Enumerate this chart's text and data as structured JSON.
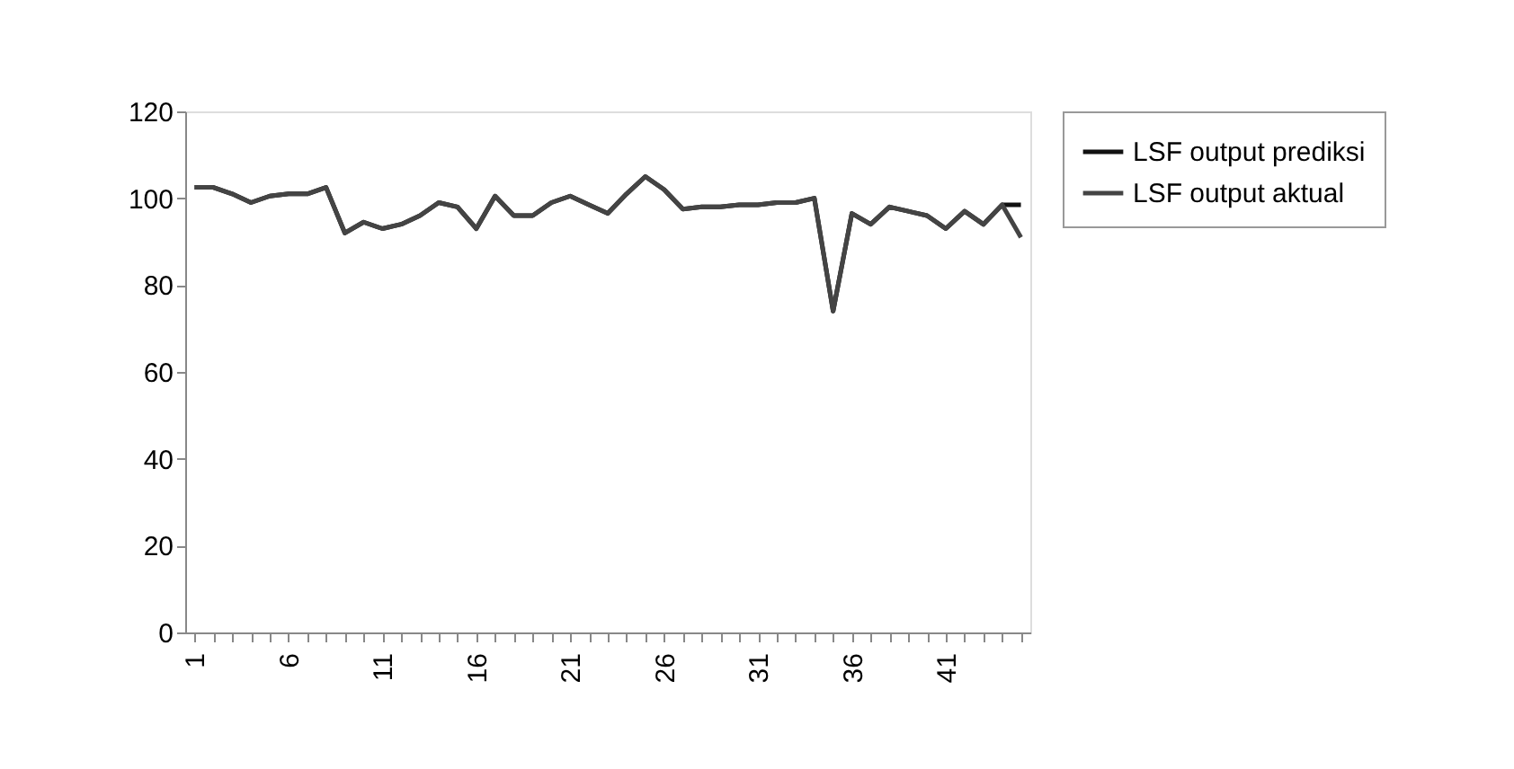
{
  "chart_data": {
    "type": "line",
    "categories": [
      "1",
      null,
      null,
      null,
      null,
      "6",
      null,
      null,
      null,
      null,
      "11",
      null,
      null,
      null,
      null,
      "16",
      null,
      null,
      null,
      null,
      "21",
      null,
      null,
      null,
      null,
      "26",
      null,
      null,
      null,
      null,
      "31",
      null,
      null,
      null,
      null,
      "36",
      null,
      null,
      null,
      null,
      "41",
      null,
      null,
      null,
      null
    ],
    "series": [
      {
        "name": "LSF output prediksi",
        "color": "#111111",
        "values": [
          102.5,
          102.5,
          101,
          99,
          100.5,
          101,
          101,
          102.5,
          92,
          94.5,
          93,
          94,
          96,
          99,
          98,
          93,
          100.5,
          96,
          96,
          99,
          100.5,
          98.5,
          96.5,
          101,
          105,
          102,
          97.5,
          98,
          98,
          98.5,
          98.5,
          99,
          99,
          100,
          74,
          96.5,
          94,
          98,
          97,
          96,
          93,
          97,
          94,
          98.5,
          98.5
        ]
      },
      {
        "name": "LSF output aktual",
        "color": "#444444",
        "values": [
          102.5,
          102.5,
          101,
          99,
          100.5,
          101,
          101,
          102.5,
          92,
          94.5,
          93,
          94,
          96,
          99,
          98,
          93,
          100.5,
          96,
          96,
          99,
          100.5,
          98.5,
          96.5,
          101,
          105,
          102,
          97.5,
          98,
          98,
          98.5,
          98.5,
          99,
          99,
          100,
          74,
          96.5,
          94,
          98,
          97,
          96,
          93,
          97,
          94,
          98.5,
          91
        ]
      }
    ],
    "ylim": [
      0,
      120
    ],
    "yticks": [
      0,
      20,
      40,
      60,
      80,
      100,
      120
    ],
    "grid": false,
    "legend": "right",
    "marker": "none",
    "line_style": "solid"
  }
}
